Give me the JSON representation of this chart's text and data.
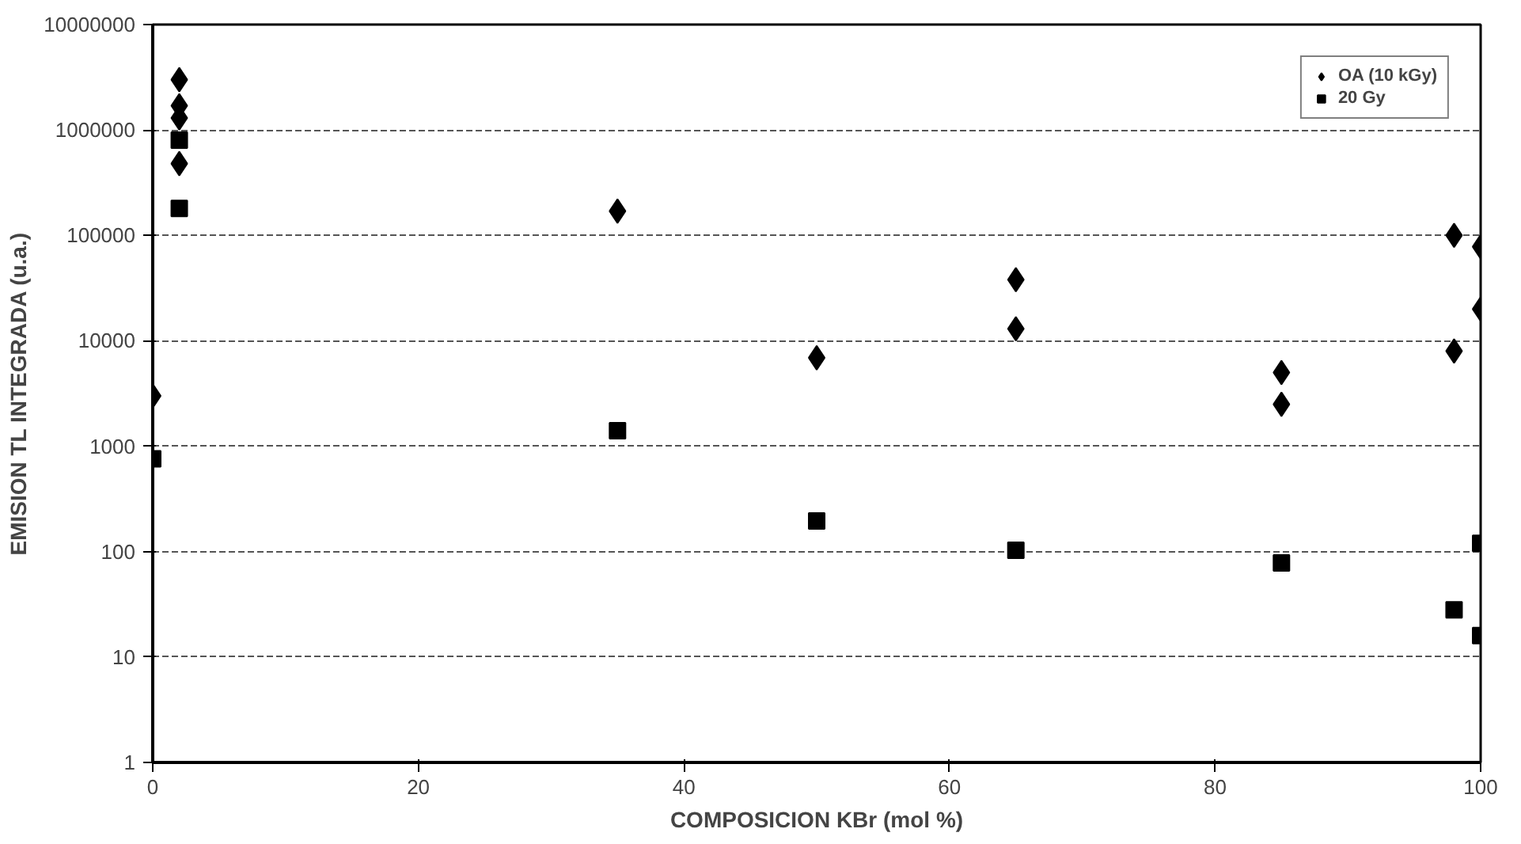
{
  "chart_data": {
    "type": "scatter",
    "xlabel": "COMPOSICION KBr (mol %)",
    "ylabel": "EMISION TL INTEGRADA (u.a.)",
    "series": [
      {
        "name": "OA (10 kGy)",
        "color": "#000000",
        "marker": "diamond",
        "x": [
          0,
          2,
          2,
          2,
          2,
          35,
          50,
          65,
          65,
          85,
          85,
          98,
          98,
          100,
          100
        ],
        "values": [
          3000,
          3000000,
          1700000,
          1300000,
          480000,
          170000,
          6900,
          38000,
          13000,
          5000,
          2500,
          100000,
          8000,
          78000,
          20000
        ]
      },
      {
        "name": "20 Gy",
        "color": "#000000",
        "marker": "square",
        "x": [
          0,
          2,
          2,
          35,
          50,
          65,
          85,
          98,
          100,
          100
        ],
        "values": [
          760,
          800000,
          180000,
          1400,
          195,
          103,
          78,
          28,
          120,
          16
        ]
      }
    ],
    "xlim": [
      0,
      100
    ],
    "xticks": [
      0,
      20,
      40,
      60,
      80,
      100
    ],
    "ylim": [
      1,
      10000000
    ],
    "yticks": [
      1,
      10,
      100,
      1000,
      10000,
      100000,
      1000000,
      10000000
    ],
    "log": "y",
    "grid": "y",
    "legend": "top right"
  }
}
